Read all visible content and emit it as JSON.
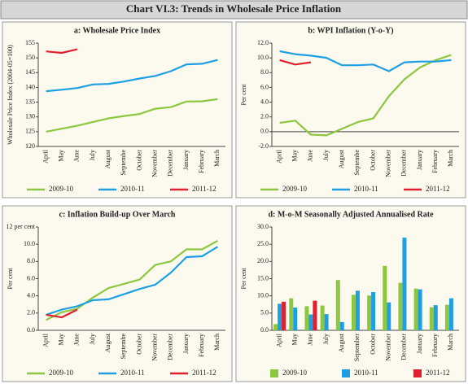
{
  "title": "Chart VI.3: Trends in Wholesale Price Inflation",
  "chart_data": [
    {
      "type": "line",
      "title": "a: Wholesale Price Index",
      "y_label": "Wholesale Price Index (2004-05=100)",
      "categories": [
        "April",
        "May",
        "June",
        "July",
        "August",
        "Septembe",
        "October",
        "November",
        "December",
        "January",
        "February",
        "March"
      ],
      "ylim": [
        120,
        155
      ],
      "yticks": [
        120,
        125,
        130,
        135,
        140,
        145,
        150,
        155
      ],
      "series": [
        {
          "name": "2009-10",
          "color": "#8dc63f",
          "values": [
            125,
            126,
            127,
            128.3,
            129.5,
            130.3,
            131,
            132.8,
            133.3,
            135.2,
            135.3,
            136
          ]
        },
        {
          "name": "2010-11",
          "color": "#1e9fe3",
          "values": [
            138.7,
            139.2,
            139.8,
            141,
            141.2,
            142,
            143,
            143.9,
            145.5,
            147.8,
            148,
            149.3
          ]
        },
        {
          "name": "2011-12",
          "color": "#e0202c",
          "values": [
            152.2,
            151.7,
            152.9,
            null,
            null,
            null,
            null,
            null,
            null,
            null,
            null,
            null
          ]
        }
      ]
    },
    {
      "type": "line",
      "title": "b: WPI Inflation (Y-o-Y)",
      "y_label": "Per cent",
      "categories": [
        "April",
        "May",
        "June",
        "July",
        "August",
        "Septembe",
        "October",
        "November",
        "December",
        "January",
        "February",
        "March"
      ],
      "ylim": [
        -2,
        12
      ],
      "yticks": [
        {
          "value": -2,
          "label": "-2.0"
        },
        {
          "value": 0,
          "label": "0.0"
        },
        {
          "value": 2,
          "label": "2.0"
        },
        {
          "value": 4,
          "label": "4.0"
        },
        {
          "value": 6,
          "label": "6.0"
        },
        {
          "value": 8,
          "label": "8.0"
        },
        {
          "value": 10,
          "label": "10.0"
        },
        {
          "value": 12,
          "label": "12.0"
        }
      ],
      "series": [
        {
          "name": "2009-10",
          "color": "#8dc63f",
          "values": [
            1.2,
            1.5,
            -0.4,
            -0.5,
            0.4,
            1.3,
            1.8,
            4.8,
            7.1,
            8.7,
            9.7,
            10.4
          ]
        },
        {
          "name": "2010-11",
          "color": "#1e9fe3",
          "values": [
            10.9,
            10.5,
            10.3,
            10.0,
            9.0,
            9.0,
            9.1,
            8.2,
            9.4,
            9.5,
            9.5,
            9.7
          ]
        },
        {
          "name": "2011-12",
          "color": "#e0202c",
          "values": [
            9.7,
            9.1,
            9.4,
            null,
            null,
            null,
            null,
            null,
            null,
            null,
            null,
            null
          ]
        }
      ]
    },
    {
      "type": "line",
      "title": "c: Inflation Build-up Over March",
      "y_label": "Per cent",
      "categories": [
        "April",
        "May",
        "June",
        "July",
        "August",
        "Septembe",
        "October",
        "November",
        "December",
        "January",
        "February",
        "March"
      ],
      "ylim": [
        0,
        12
      ],
      "yticks": [
        {
          "value": 0,
          "label": "0.0"
        },
        {
          "value": 2,
          "label": "2.0"
        },
        {
          "value": 4,
          "label": "4.0"
        },
        {
          "value": 6,
          "label": "6.0"
        },
        {
          "value": 8,
          "label": "8.0"
        },
        {
          "value": 10,
          "label": "10.0"
        },
        {
          "value": 12,
          "label": "12 per cent"
        }
      ],
      "series": [
        {
          "name": "2009-10",
          "color": "#8dc63f",
          "values": [
            1.2,
            2.1,
            2.5,
            3.8,
            4.9,
            5.4,
            5.9,
            7.6,
            8.0,
            9.4,
            9.4,
            10.4
          ]
        },
        {
          "name": "2010-11",
          "color": "#1e9fe3",
          "values": [
            1.8,
            2.4,
            2.8,
            3.5,
            3.6,
            4.2,
            4.8,
            5.3,
            6.7,
            8.5,
            8.6,
            9.7
          ]
        },
        {
          "name": "2011-12",
          "color": "#e0202c",
          "values": [
            1.8,
            1.5,
            2.4,
            null,
            null,
            null,
            null,
            null,
            null,
            null,
            null,
            null
          ]
        }
      ]
    },
    {
      "type": "bar",
      "title": "d: M-o-M Seasonally Adjusted Annualised Rate",
      "y_label": "Per cent",
      "categories": [
        "April",
        "May",
        "June",
        "July",
        "August",
        "September",
        "October",
        "November",
        "December",
        "January",
        "February",
        "March"
      ],
      "ylim": [
        0,
        30
      ],
      "yticks": [
        {
          "value": 0,
          "label": "0.0"
        },
        {
          "value": 5,
          "label": "5.0"
        },
        {
          "value": 10,
          "label": "10.0"
        },
        {
          "value": 15,
          "label": "15.0"
        },
        {
          "value": 20,
          "label": "20.0"
        },
        {
          "value": 25,
          "label": "25.0"
        },
        {
          "value": 30,
          "label": "30.0"
        }
      ],
      "series": [
        {
          "name": "2009-10",
          "color": "#8dc63f",
          "values": [
            1.8,
            9.3,
            7.0,
            7.2,
            14.6,
            10.3,
            10.1,
            18.7,
            13.8,
            12.1,
            6.7,
            7.4
          ]
        },
        {
          "name": "2010-11",
          "color": "#1e9fe3",
          "values": [
            7.7,
            6.6,
            4.6,
            4.7,
            2.4,
            11.5,
            11.1,
            8.1,
            26.9,
            11.9,
            7.3,
            9.3
          ]
        },
        {
          "name": "2011-12",
          "color": "#e0202c",
          "values": [
            8.3,
            null,
            8.6,
            null,
            null,
            null,
            null,
            null,
            null,
            null,
            null,
            null
          ]
        }
      ]
    }
  ]
}
